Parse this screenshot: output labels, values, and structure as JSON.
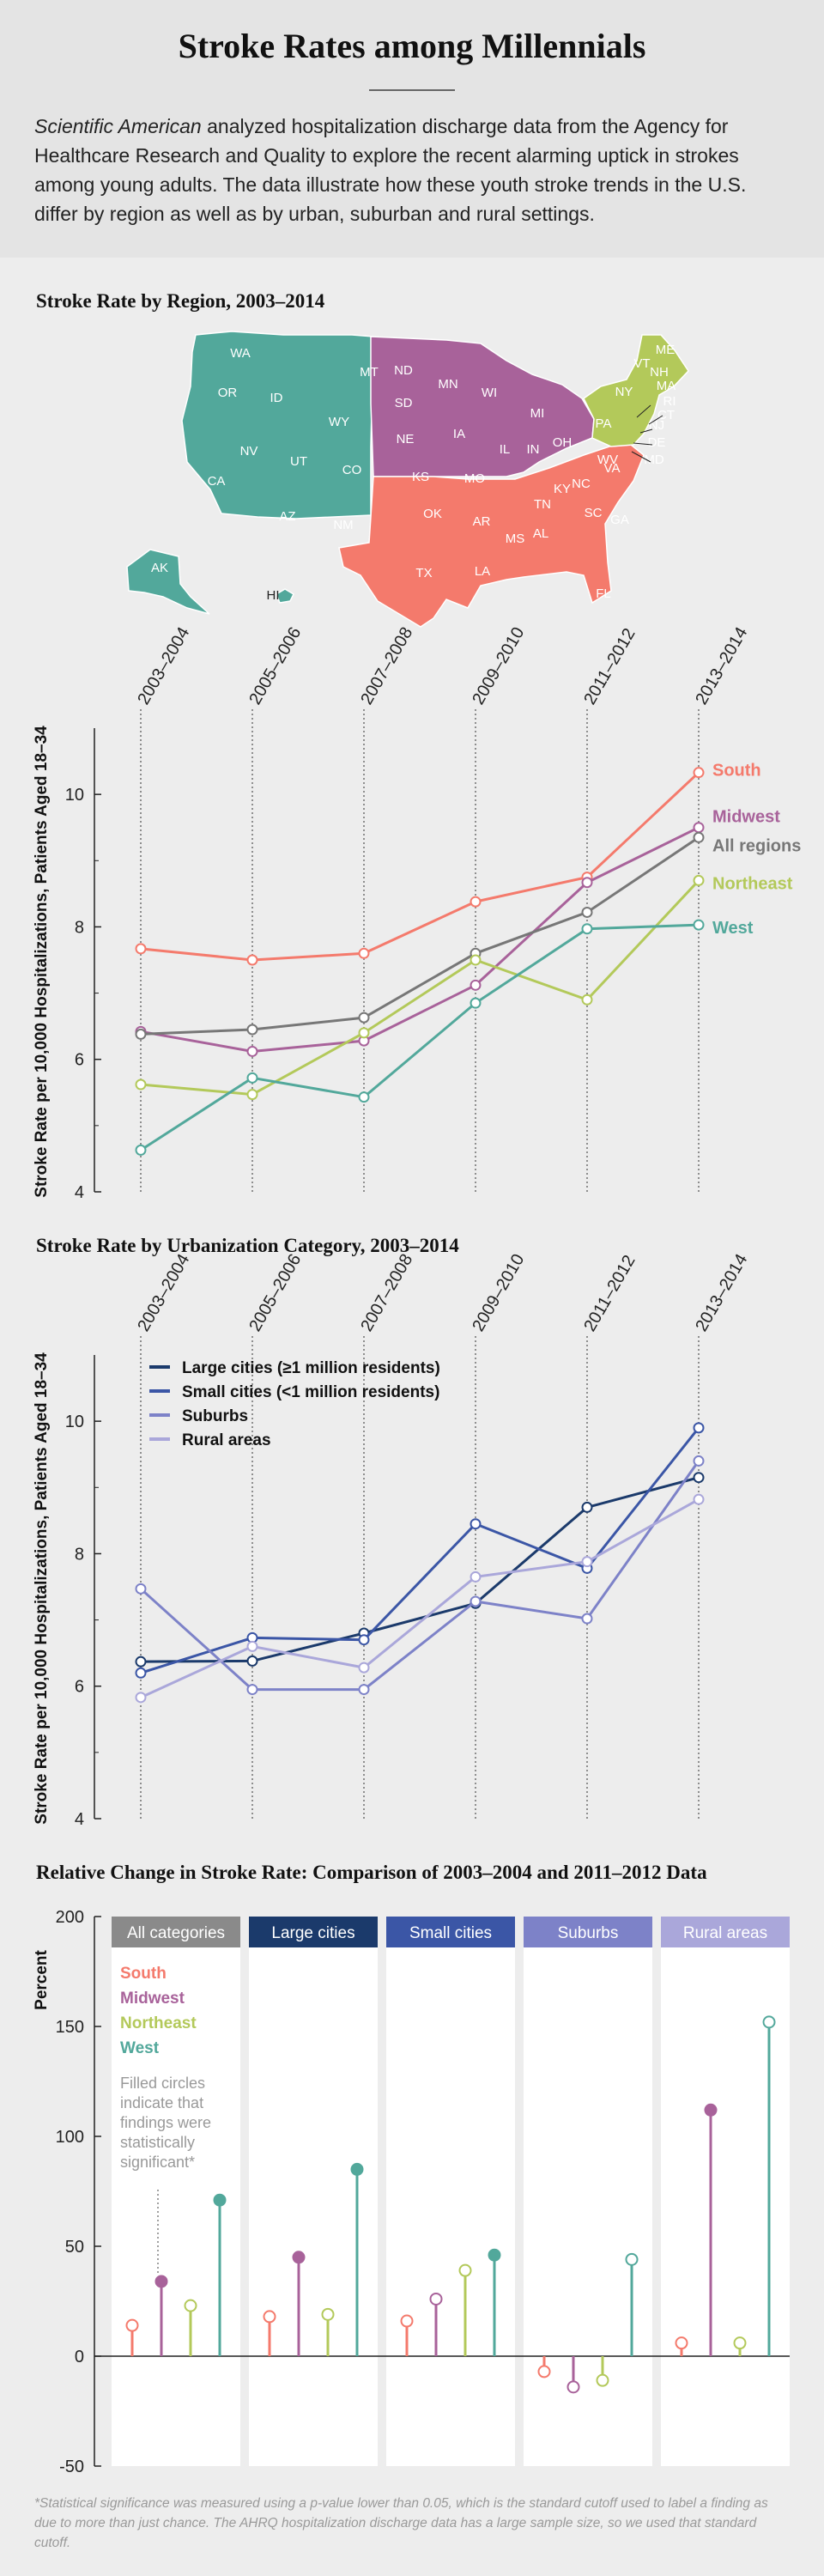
{
  "header": {
    "title": "Stroke Rates among Millennials",
    "intro_italic": "Scientific American",
    "intro_text": " analyzed hospitalization discharge data from the Agency for Healthcare Research and Quality to explore the recent alarming uptick in strokes among young adults. The data illustrate how these youth stroke trends in the U.S. differ by region as well as by urban, suburban and rural settings."
  },
  "colors": {
    "south": "#f47a6c",
    "midwest": "#a8629a",
    "northeast": "#b3c95a",
    "west": "#52a89b",
    "all_regions": "#777777",
    "large_cities": "#1b3a6b",
    "small_cities": "#3b56a6",
    "suburbs": "#7d82c8",
    "rural": "#aaa7da",
    "header_all": "#8a8a8a"
  },
  "map": {
    "title": "Stroke Rate by Region, 2003–2014",
    "region_names": [
      "West",
      "Midwest",
      "South",
      "Northeast"
    ],
    "state_labels": {
      "west": [
        "WA",
        "OR",
        "ID",
        "MT",
        "WY",
        "NV",
        "UT",
        "CO",
        "CA",
        "AZ",
        "NM",
        "AK",
        "HI"
      ],
      "midwest": [
        "ND",
        "MN",
        "WI",
        "SD",
        "MI",
        "IA",
        "NE",
        "IL",
        "IN",
        "OH",
        "KS",
        "MO"
      ],
      "south": [
        "OK",
        "TX",
        "AR",
        "LA",
        "MS",
        "AL",
        "TN",
        "KY",
        "GA",
        "SC",
        "NC",
        "VA",
        "WV",
        "FL"
      ],
      "northeast": [
        "ME",
        "VT",
        "NH",
        "MA",
        "RI",
        "CT",
        "NY",
        "PA",
        "NJ",
        "DE",
        "MD"
      ]
    }
  },
  "chart_data": [
    {
      "type": "line",
      "title": "Stroke Rate by Region, 2003–2014",
      "categories": [
        "2003–2004",
        "2005–2006",
        "2007–2008",
        "2009–2010",
        "2011–2012",
        "2013–2014"
      ],
      "ylabel": "Stroke Rate per 10,000 Hospitalizations, Patients Aged 18–34",
      "ylim": [
        4,
        11
      ],
      "yticks": [
        4,
        6,
        8,
        10
      ],
      "legend_position": "end-of-lines",
      "series": [
        {
          "name": "South",
          "key": "south",
          "values": [
            7.67,
            7.5,
            7.6,
            8.38,
            8.75,
            10.33
          ]
        },
        {
          "name": "Midwest",
          "key": "midwest",
          "values": [
            6.42,
            6.12,
            6.28,
            7.12,
            8.67,
            9.5
          ]
        },
        {
          "name": "All regions",
          "key": "all_regions",
          "values": [
            6.38,
            6.45,
            6.63,
            7.6,
            8.22,
            9.35
          ]
        },
        {
          "name": "Northeast",
          "key": "northeast",
          "values": [
            5.62,
            5.47,
            6.4,
            7.5,
            6.9,
            8.7
          ]
        },
        {
          "name": "West",
          "key": "west",
          "values": [
            4.63,
            5.72,
            5.43,
            6.85,
            7.97,
            8.03
          ]
        }
      ]
    },
    {
      "type": "line",
      "title": "Stroke Rate by Urbanization Category, 2003–2014",
      "categories": [
        "2003–2004",
        "2005–2006",
        "2007–2008",
        "2009–2010",
        "2011–2012",
        "2013–2014"
      ],
      "ylabel": "Stroke Rate per 10,000 Hospitalizations, Patients Aged 18–34",
      "ylim": [
        4,
        11
      ],
      "yticks": [
        4,
        6,
        8,
        10
      ],
      "legend_position": "top-left",
      "series": [
        {
          "name": "Large cities (≥1 million residents)",
          "key": "large_cities",
          "values": [
            6.37,
            6.38,
            6.8,
            7.25,
            8.7,
            9.15
          ]
        },
        {
          "name": "Small cities (<1 million residents)",
          "key": "small_cities",
          "values": [
            6.2,
            6.73,
            6.7,
            8.45,
            7.78,
            9.9
          ]
        },
        {
          "name": "Suburbs",
          "key": "suburbs",
          "values": [
            7.47,
            5.95,
            5.95,
            7.28,
            7.02,
            9.4
          ]
        },
        {
          "name": "Rural areas",
          "key": "rural",
          "values": [
            5.83,
            6.6,
            6.28,
            7.65,
            7.88,
            8.82
          ]
        }
      ]
    },
    {
      "type": "lollipop",
      "title": "Relative Change in Stroke Rate: Comparison of 2003–2004 and 2011–2012 Data",
      "ylabel": "Percent",
      "ylim": [
        -50,
        200
      ],
      "yticks": [
        -50,
        0,
        50,
        100,
        150,
        200
      ],
      "series_names": [
        "South",
        "Midwest",
        "Northeast",
        "West"
      ],
      "series_keys": [
        "south",
        "midwest",
        "northeast",
        "west"
      ],
      "legend_note": "Filled circles indicate that findings were statistically significant*",
      "groups": [
        {
          "name": "All categories",
          "color_key": "header_all",
          "values": [
            14,
            34,
            23,
            71
          ],
          "significant": [
            false,
            true,
            false,
            true
          ]
        },
        {
          "name": "Large cities",
          "color_key": "large_cities",
          "values": [
            18,
            45,
            19,
            85
          ],
          "significant": [
            false,
            true,
            false,
            true
          ]
        },
        {
          "name": "Small cities",
          "color_key": "small_cities",
          "values": [
            16,
            26,
            39,
            46
          ],
          "significant": [
            false,
            false,
            false,
            true
          ]
        },
        {
          "name": "Suburbs",
          "color_key": "suburbs",
          "values": [
            -7,
            -14,
            -11,
            44
          ],
          "significant": [
            false,
            false,
            false,
            false
          ]
        },
        {
          "name": "Rural areas",
          "color_key": "rural",
          "values": [
            6,
            112,
            6,
            152
          ],
          "significant": [
            false,
            true,
            false,
            false
          ]
        }
      ]
    }
  ],
  "footnote": "*Statistical significance was measured using a p-value lower than 0.05, which is the standard cutoff used to label a finding as due to more than just chance. The AHRQ hospitalization discharge data has a large sample size, so we used that standard cutoff."
}
